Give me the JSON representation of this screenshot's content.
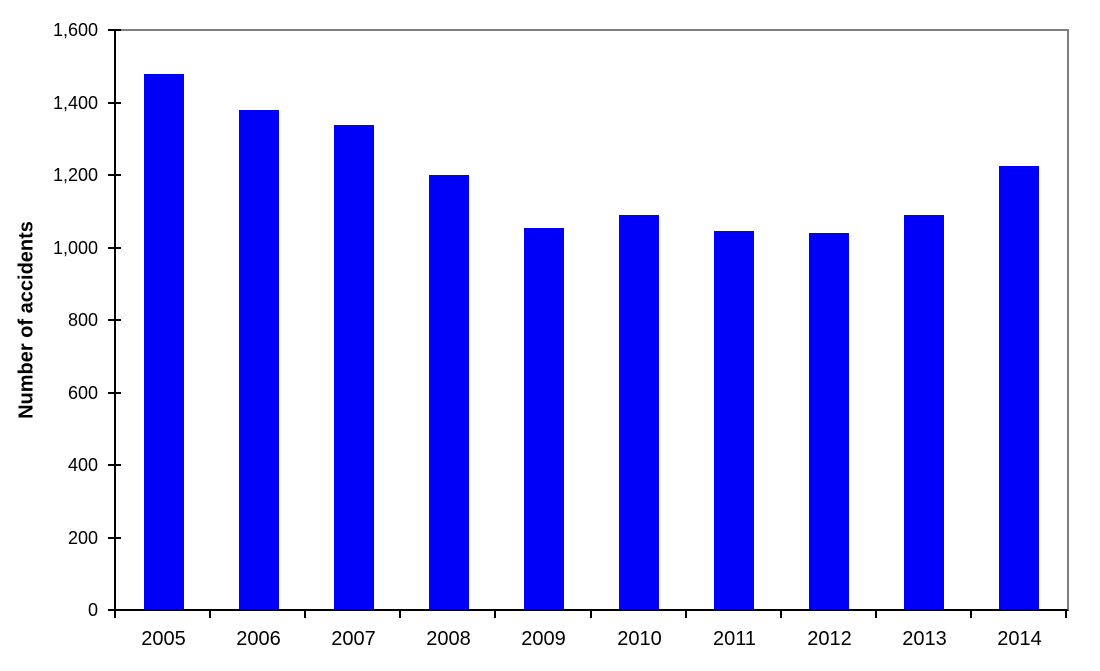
{
  "chart_data": {
    "type": "bar",
    "title": "",
    "xlabel": "",
    "ylabel": "Number of accidents",
    "categories": [
      "2005",
      "2006",
      "2007",
      "2008",
      "2009",
      "2010",
      "2011",
      "2012",
      "2013",
      "2014"
    ],
    "values": [
      1480,
      1380,
      1340,
      1200,
      1055,
      1090,
      1045,
      1040,
      1090,
      1225
    ],
    "ylim": [
      0,
      1600
    ],
    "yticks": [
      0,
      200,
      400,
      600,
      800,
      1000,
      1200,
      1400,
      1600
    ],
    "ytick_labels": [
      "0",
      "200",
      "400",
      "600",
      "800",
      "1,000",
      "1,200",
      "1,400",
      "1,600"
    ],
    "grid": false,
    "legend": false,
    "bar_color": "#0000FA",
    "axis_color": "#000000",
    "plot_border_color": "#7F7F7F",
    "text_color": "#000000"
  }
}
